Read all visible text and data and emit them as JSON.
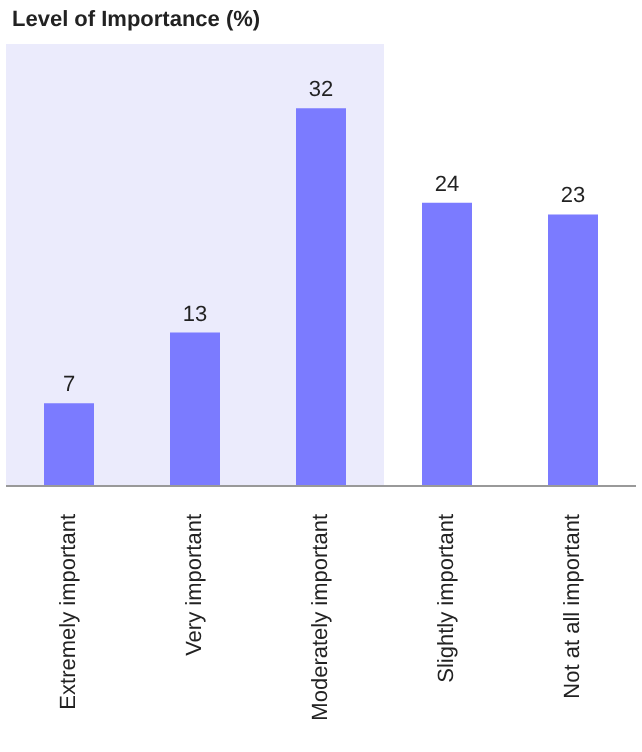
{
  "chart_data": {
    "type": "bar",
    "title": "Level of Importance (%)",
    "categories": [
      "Extremely important",
      "Very important",
      "Moderately important",
      "Slightly important",
      "Not at all important"
    ],
    "values": [
      7,
      13,
      32,
      24,
      23
    ],
    "color": "#7b7bff",
    "data_labels": true,
    "grid": false,
    "legend": false,
    "bands": [
      {
        "axis": "x",
        "from": "Extremely important",
        "to": "Moderately important",
        "color": "#ebebfc"
      }
    ]
  }
}
